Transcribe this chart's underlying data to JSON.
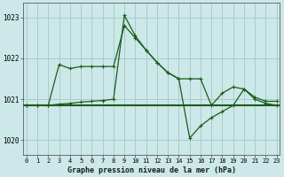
{
  "title": "Graphe pression niveau de la mer (hPa)",
  "bg_color": "#cce8e8",
  "grid_color": "#aacccc",
  "line_color": "#1a5c1a",
  "ylim": [
    1019.65,
    1023.35
  ],
  "xlim": [
    -0.3,
    23.3
  ],
  "yticks": [
    1020,
    1021,
    1022,
    1023
  ],
  "xticks": [
    0,
    1,
    2,
    3,
    4,
    5,
    6,
    7,
    8,
    9,
    10,
    11,
    12,
    13,
    14,
    15,
    16,
    17,
    18,
    19,
    20,
    21,
    22,
    23
  ],
  "line_flat_y": 1020.85,
  "line1_x": [
    0,
    1,
    2,
    3,
    4,
    5,
    6,
    7,
    8,
    9,
    10,
    11,
    12,
    13,
    14,
    15,
    16,
    17,
    18,
    19,
    20,
    21,
    22,
    23
  ],
  "line1_y": [
    1020.85,
    1020.85,
    1020.85,
    1021.85,
    1021.75,
    1021.8,
    1021.8,
    1021.8,
    1021.8,
    1022.8,
    1022.5,
    1022.2,
    1021.9,
    1021.65,
    1021.5,
    1021.5,
    1021.5,
    1020.85,
    1021.15,
    1021.3,
    1021.25,
    1021.05,
    1020.95,
    1020.95
  ],
  "line2_x": [
    0,
    1,
    2,
    3,
    4,
    5,
    6,
    7,
    8,
    9,
    10,
    11,
    12,
    13,
    14,
    15,
    16,
    17,
    18,
    19,
    20,
    21,
    22,
    23
  ],
  "line2_y": [
    1020.85,
    1020.85,
    1020.85,
    1020.88,
    1020.9,
    1020.93,
    1020.95,
    1020.97,
    1021.0,
    1023.05,
    1022.55,
    1022.2,
    1021.9,
    1021.65,
    1021.5,
    1020.05,
    1020.35,
    1020.55,
    1020.7,
    1020.85,
    1021.25,
    1021.0,
    1020.9,
    1020.85
  ]
}
